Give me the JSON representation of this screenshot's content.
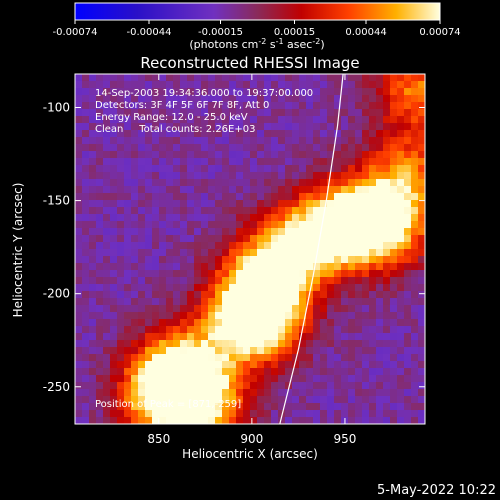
{
  "colorbar": {
    "ticks": [
      "-0.00074",
      "-0.00044",
      "-0.00015",
      "0.00015",
      "0.00044",
      "0.00074"
    ],
    "tick_values": [
      -0.00074,
      -0.00044,
      -0.00015,
      0.00015,
      0.00044,
      0.00074
    ],
    "range": [
      -0.00074,
      0.00074
    ],
    "unit_main": "(photons cm",
    "unit_exp1": "-2",
    "unit_mid": " s",
    "unit_exp2": "-1",
    "unit_end": " asec",
    "unit_exp3": "-2",
    "unit_close": ")"
  },
  "chart_data": {
    "type": "heatmap",
    "title": "Reconstructed RHESSI Image",
    "xlabel": "Heliocentric X (arcsec)",
    "ylabel": "Heliocentric Y (arcsec)",
    "xlim": [
      805,
      993
    ],
    "ylim": [
      -270,
      -82
    ],
    "xticks": [
      850,
      900,
      950
    ],
    "yticks": [
      -250,
      -200,
      -150,
      -100
    ],
    "annotations": [
      "14-Sep-2003 19:34:36.000 to 19:37:00.000",
      "Detectors: 3F 4F 5F 6F 7F 8F, Att 0",
      "Energy Range: 12.0 - 25.0 keV",
      "Clean     Total counts: 2.26E+03",
      "Position of Peak = [871,-259]"
    ],
    "peak": [
      871,
      -259
    ],
    "limb_curve": [
      [
        915,
        -270
      ],
      [
        925,
        -230
      ],
      [
        933,
        -190
      ],
      [
        940,
        -150
      ],
      [
        946,
        -110
      ],
      [
        949,
        -82
      ]
    ],
    "sources": [
      {
        "x": 850,
        "y": -255,
        "intensity": 0.00074
      },
      {
        "x": 875,
        "y": -258,
        "intensity": 0.0007
      },
      {
        "x": 862,
        "y": -238,
        "intensity": 0.00058
      },
      {
        "x": 895,
        "y": -215,
        "intensity": 0.00058
      },
      {
        "x": 905,
        "y": -190,
        "intensity": 0.00055
      },
      {
        "x": 908,
        "y": -212,
        "intensity": 0.00064
      },
      {
        "x": 925,
        "y": -175,
        "intensity": 0.0006
      },
      {
        "x": 945,
        "y": -165,
        "intensity": 0.0006
      },
      {
        "x": 962,
        "y": -158,
        "intensity": 0.00052
      },
      {
        "x": 975,
        "y": -165,
        "intensity": 0.0005
      },
      {
        "x": 985,
        "y": -135,
        "intensity": 0.00045
      },
      {
        "x": 988,
        "y": -90,
        "intensity": 0.0005
      }
    ],
    "background": -0.00012
  },
  "footer": {
    "timestamp": "5-May-2022 10:22"
  }
}
